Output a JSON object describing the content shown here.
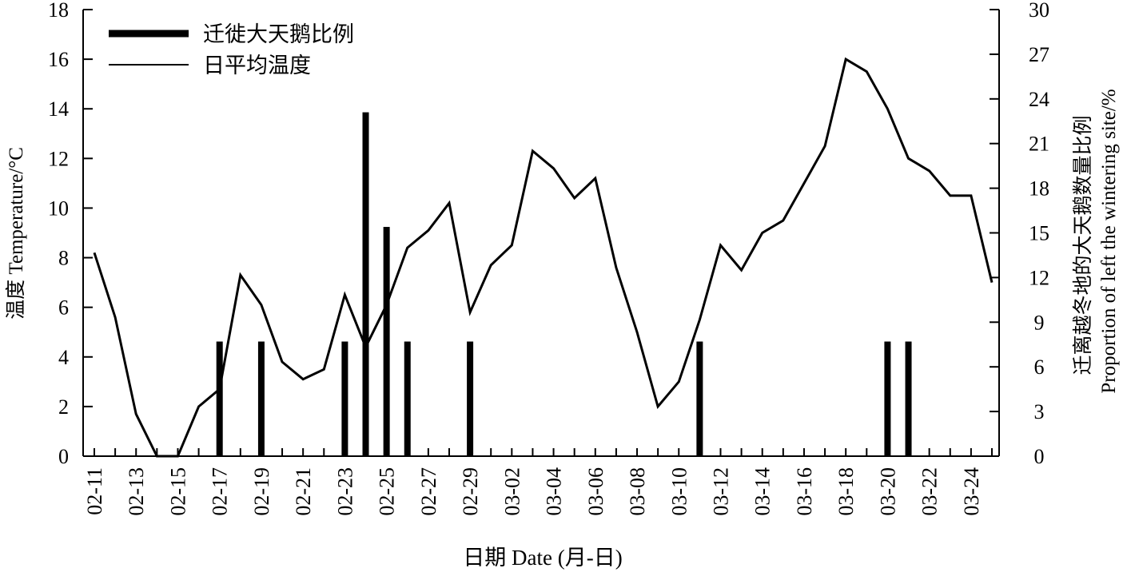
{
  "chart_data": {
    "type": "bar+line",
    "xlabel": "日期 Date (月-日)",
    "ylabel_left": "温度 Temperature/°C",
    "ylabel_right_line1": "迁离越冬地的大天鹅数量比例",
    "ylabel_right_line2": "Proportion of left the wintering site/%",
    "ylim_left": [
      0,
      18
    ],
    "ylim_right": [
      0,
      30
    ],
    "yticks_left": [
      "0",
      "2",
      "4",
      "6",
      "8",
      "10",
      "12",
      "14",
      "16",
      "18"
    ],
    "yticks_right": [
      "0",
      "3",
      "6",
      "9",
      "12",
      "15",
      "18",
      "21",
      "24",
      "27",
      "30"
    ],
    "x_tick_labels": [
      "02-11",
      "02-13",
      "02-15",
      "02-17",
      "02-19",
      "02-21",
      "02-23",
      "02-25",
      "02-27",
      "02-29",
      "03-02",
      "03-04",
      "03-06",
      "03-08",
      "03-10",
      "03-12",
      "03-14",
      "03-16",
      "03-18",
      "03-20",
      "03-22",
      "03-24"
    ],
    "dates": [
      "02-11",
      "02-12",
      "02-13",
      "02-14",
      "02-15",
      "02-16",
      "02-17",
      "02-18",
      "02-19",
      "02-20",
      "02-21",
      "02-22",
      "02-23",
      "02-24",
      "02-25",
      "02-26",
      "02-27",
      "02-28",
      "02-29",
      "03-01",
      "03-02",
      "03-03",
      "03-04",
      "03-05",
      "03-06",
      "03-07",
      "03-08",
      "03-09",
      "03-10",
      "03-11",
      "03-12",
      "03-13",
      "03-14",
      "03-15",
      "03-16",
      "03-17",
      "03-18",
      "03-19",
      "03-20",
      "03-21",
      "03-22",
      "03-23",
      "03-24",
      "03-25"
    ],
    "legend": {
      "position": "top-left",
      "bar_label": "迁徙大天鹅比例",
      "line_label": "日平均温度"
    },
    "series": [
      {
        "name": "日平均温度",
        "kind": "line",
        "axis": "left",
        "values": [
          8.2,
          5.6,
          1.7,
          0,
          0,
          2.0,
          2.7,
          7.3,
          6.1,
          3.8,
          3.1,
          3.5,
          6.5,
          4.4,
          6.1,
          8.4,
          9.1,
          10.2,
          5.8,
          7.7,
          8.5,
          12.3,
          11.6,
          10.4,
          11.2,
          7.6,
          5.0,
          2.0,
          3.0,
          5.5,
          8.5,
          7.5,
          9.0,
          9.5,
          11.0,
          12.5,
          16.0,
          15.5,
          14.0,
          12.0,
          11.5,
          10.5,
          10.5,
          7.0
        ]
      },
      {
        "name": "迁徙大天鹅比例",
        "kind": "bar",
        "axis": "right",
        "points": [
          {
            "date": "02-17",
            "value": 7.7
          },
          {
            "date": "02-19",
            "value": 7.7
          },
          {
            "date": "02-23",
            "value": 7.7
          },
          {
            "date": "02-24",
            "value": 23.1
          },
          {
            "date": "02-25",
            "value": 15.4
          },
          {
            "date": "02-26",
            "value": 7.7
          },
          {
            "date": "02-29",
            "value": 7.7
          },
          {
            "date": "03-11",
            "value": 7.7
          },
          {
            "date": "03-20",
            "value": 7.7
          },
          {
            "date": "03-21",
            "value": 7.7
          }
        ]
      }
    ]
  }
}
